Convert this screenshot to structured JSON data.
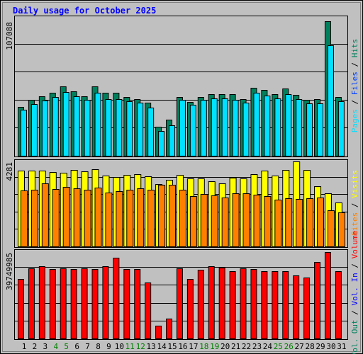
{
  "chart_data": [
    {
      "type": "bar",
      "title": "Daily usage for October 2025",
      "ylim": [
        0,
        107088
      ],
      "yticks": [
        107088
      ],
      "legend_separator": "/",
      "series": [
        {
          "name": "Hits",
          "color": "#00805c",
          "values": [
            38890,
            44525,
            47343,
            50162,
            55234,
            51288,
            47343,
            55234,
            50162,
            50162,
            46780,
            45089,
            42271,
            23108,
            28744,
            46780,
            42835,
            46780,
            49035,
            49035,
            49035,
            45089,
            54107,
            52416,
            49035,
            53544,
            48471,
            44525,
            45089,
            107088,
            46780
          ]
        },
        {
          "name": "Files",
          "color": "#0040ff"
        },
        {
          "name": "Pages",
          "color": "#00e0ff",
          "values": [
            36634,
            41143,
            43961,
            46779,
            50724,
            47342,
            44524,
            50160,
            45088,
            45088,
            43397,
            42270,
            38325,
            19726,
            24234,
            44524,
            40579,
            44524,
            45652,
            45652,
            44524,
            42270,
            50160,
            47906,
            45652,
            49033,
            45088,
            41706,
            41706,
            87922,
            43397
          ]
        }
      ]
    },
    {
      "type": "bar",
      "ylim": [
        0,
        4281
      ],
      "yticks": [
        4281
      ],
      "series": [
        {
          "name": "Visits",
          "color": "#ffff00",
          "values": [
            3817,
            3817,
            3817,
            3746,
            3710,
            3853,
            3782,
            3889,
            3568,
            3496,
            3603,
            3639,
            3532,
            3139,
            3353,
            3603,
            3425,
            3425,
            3282,
            3175,
            3460,
            3425,
            3639,
            3817,
            3568,
            3853,
            4281,
            3853,
            3032,
            2676,
            2212
          ]
        },
        {
          "name": "Sites",
          "color": "#ff8000",
          "values": [
            2818,
            2854,
            3175,
            2890,
            2997,
            2925,
            2854,
            2961,
            2711,
            2783,
            2854,
            2925,
            2854,
            3104,
            3104,
            2854,
            2533,
            2640,
            2569,
            2462,
            2676,
            2676,
            2604,
            2533,
            2355,
            2426,
            2390,
            2426,
            2462,
            1819,
            1712
          ]
        }
      ]
    },
    {
      "type": "bar",
      "ylim": [
        0,
        39749985
      ],
      "yticks": [
        39749985
      ],
      "categories": [
        "1",
        "2",
        "3",
        "4",
        "5",
        "6",
        "7",
        "8",
        "9",
        "10",
        "11",
        "12",
        "13",
        "14",
        "15",
        "16",
        "17",
        "18",
        "19",
        "20",
        "21",
        "22",
        "23",
        "24",
        "25",
        "26",
        "27",
        "28",
        "29",
        "30",
        "31"
      ],
      "category_colors": [
        "#000000",
        "#000000",
        "#000000",
        "#008000",
        "#008000",
        "#000000",
        "#000000",
        "#000000",
        "#000000",
        "#000000",
        "#008000",
        "#008000",
        "#000000",
        "#000000",
        "#000000",
        "#000000",
        "#000000",
        "#008000",
        "#008000",
        "#000000",
        "#000000",
        "#000000",
        "#000000",
        "#000000",
        "#008000",
        "#008000",
        "#000000",
        "#000000",
        "#000000",
        "#000000",
        "#000000"
      ],
      "series": [
        {
          "name": "Volume",
          "color": "#ff0000",
          "values": [
            27369000,
            32256000,
            33234000,
            31930000,
            32256000,
            31930000,
            32256000,
            31930000,
            33234000,
            37143000,
            31930000,
            31930000,
            25740000,
            5865000,
            9123000,
            32256000,
            27369000,
            31604000,
            33234000,
            32582000,
            30953000,
            32256000,
            31930000,
            30953000,
            30953000,
            30953000,
            28998000,
            28020000,
            35188000,
            39749985,
            30953000
          ]
        },
        {
          "name": "Vol. In",
          "color": "#0000ff"
        },
        {
          "name": "Vol. Out",
          "color": "#00805c"
        }
      ]
    }
  ]
}
